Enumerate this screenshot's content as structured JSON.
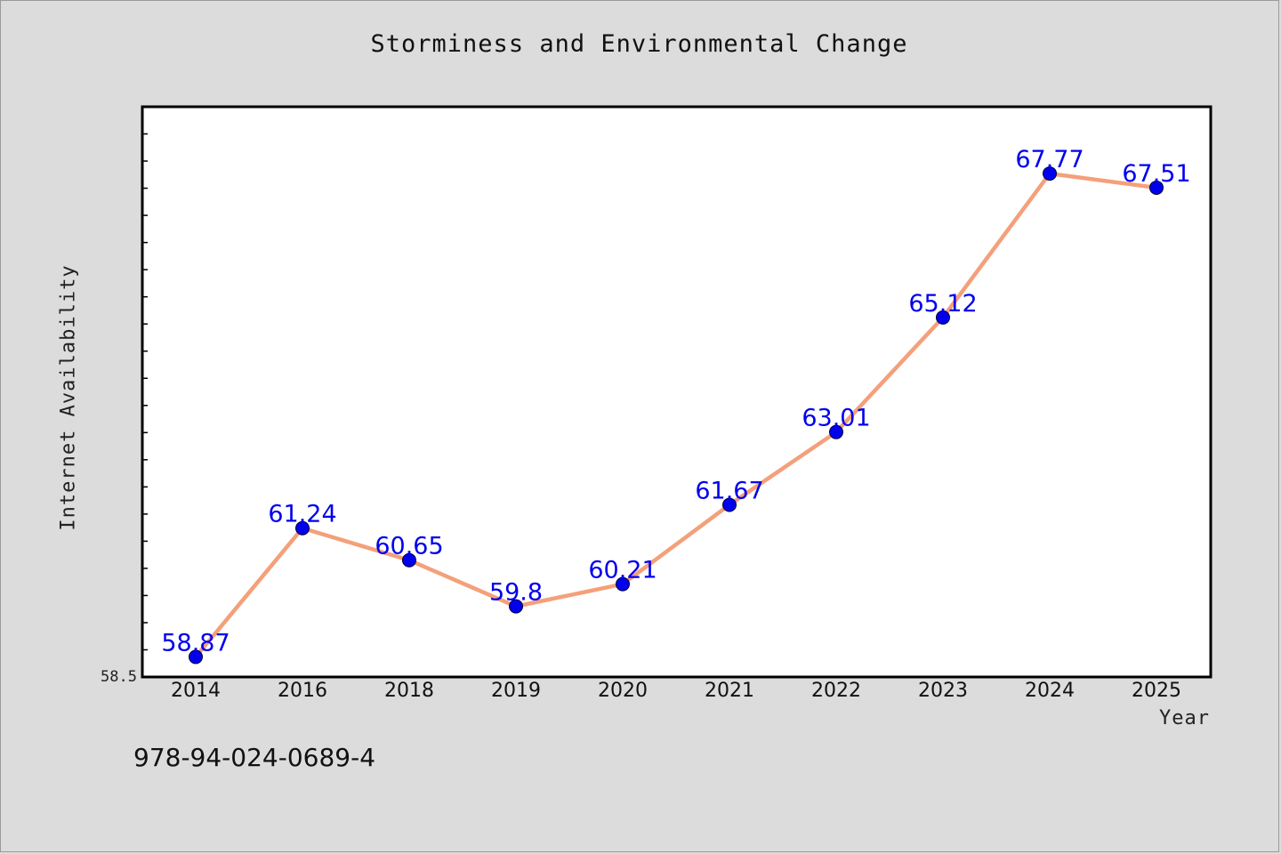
{
  "chart_data": {
    "type": "line",
    "title": "Storminess and Environmental Change",
    "xlabel": "Year",
    "ylabel": "Internet Availability",
    "categories": [
      "2014",
      "2016",
      "2018",
      "2019",
      "2020",
      "2021",
      "2022",
      "2023",
      "2024",
      "2025"
    ],
    "series": [
      {
        "values": [
          58.87,
          61.24,
          60.65,
          59.8,
          60.21,
          61.67,
          63.01,
          65.12,
          67.77,
          67.51
        ],
        "data_labels": [
          "58.87",
          "61.24",
          "60.65",
          "59.8",
          "60.21",
          "61.67",
          "63.01",
          "65.12",
          "67.77",
          "67.51"
        ]
      }
    ],
    "y_tick_labels": [
      "58.5"
    ],
    "ylim": [
      58.5,
      69.0
    ],
    "grid": false,
    "line_color": "#f4a07a",
    "marker_color": "#0000ee",
    "label_color": "#0000ee",
    "plot_background": "#ffffff",
    "figure_background": "#dcdcdc"
  },
  "annotation": "978-94-024-0689-4"
}
